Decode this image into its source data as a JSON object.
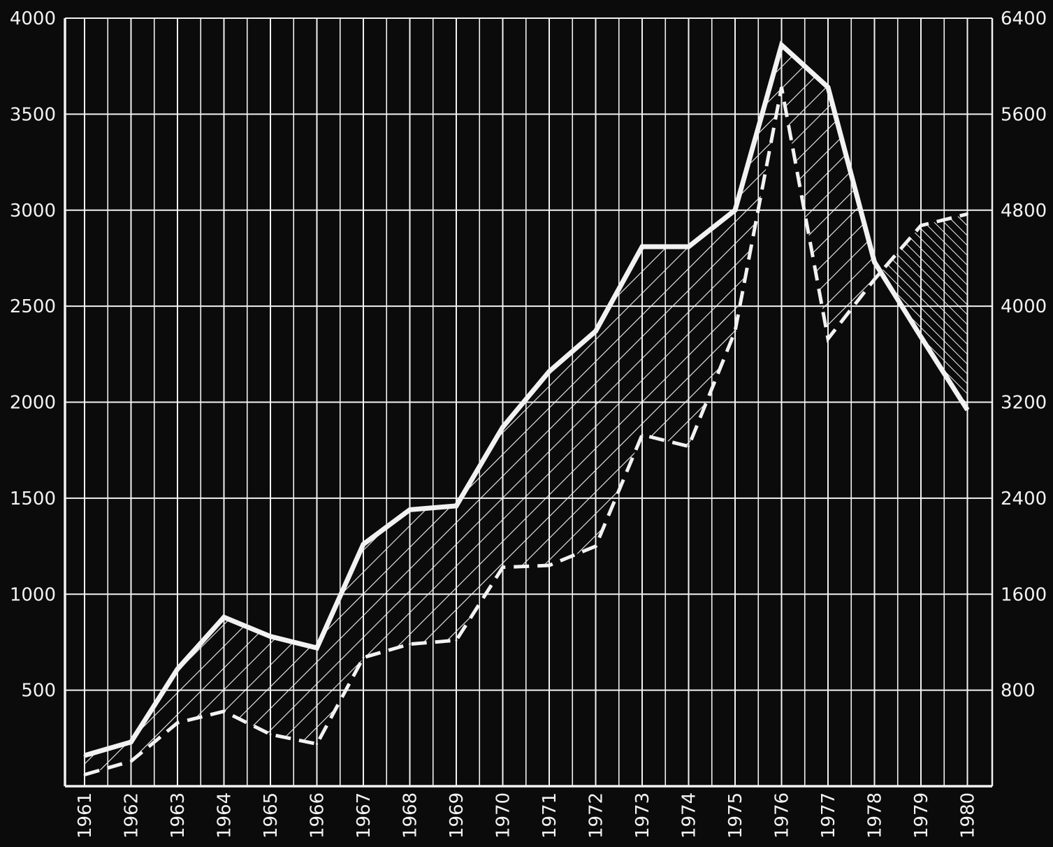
{
  "chart_data": {
    "type": "line",
    "title": "",
    "xlabel": "",
    "ylabel": "",
    "grid": true,
    "background_color": "#0b0b0b",
    "line_color": "#f2f2f2",
    "categories": [
      "1961",
      "1962",
      "1963",
      "1964",
      "1965",
      "1966",
      "1967",
      "1968",
      "1969",
      "1970",
      "1971",
      "1972",
      "1973",
      "1974",
      "1975",
      "1976",
      "1977",
      "1978",
      "1979",
      "1980"
    ],
    "y_left": {
      "ticks": [
        500,
        1000,
        1500,
        2000,
        2500,
        3000,
        3500,
        4000
      ],
      "range": [
        0,
        4000
      ]
    },
    "y_right": {
      "ticks": [
        800,
        1600,
        2400,
        3200,
        4000,
        4800,
        5600,
        6400
      ],
      "range": [
        0,
        6400
      ]
    },
    "series": [
      {
        "style": "solid",
        "axis": "left",
        "values": [
          160,
          230,
          610,
          880,
          780,
          720,
          1260,
          1440,
          1460,
          1870,
          2160,
          2370,
          2810,
          2810,
          3000,
          3860,
          3640,
          2730,
          2340,
          1960
        ]
      },
      {
        "style": "dashed",
        "axis": "left",
        "values": [
          60,
          130,
          330,
          390,
          270,
          220,
          670,
          740,
          760,
          1140,
          1150,
          1250,
          1830,
          1770,
          2370,
          3640,
          2330,
          2640,
          2920,
          2980
        ]
      }
    ]
  }
}
